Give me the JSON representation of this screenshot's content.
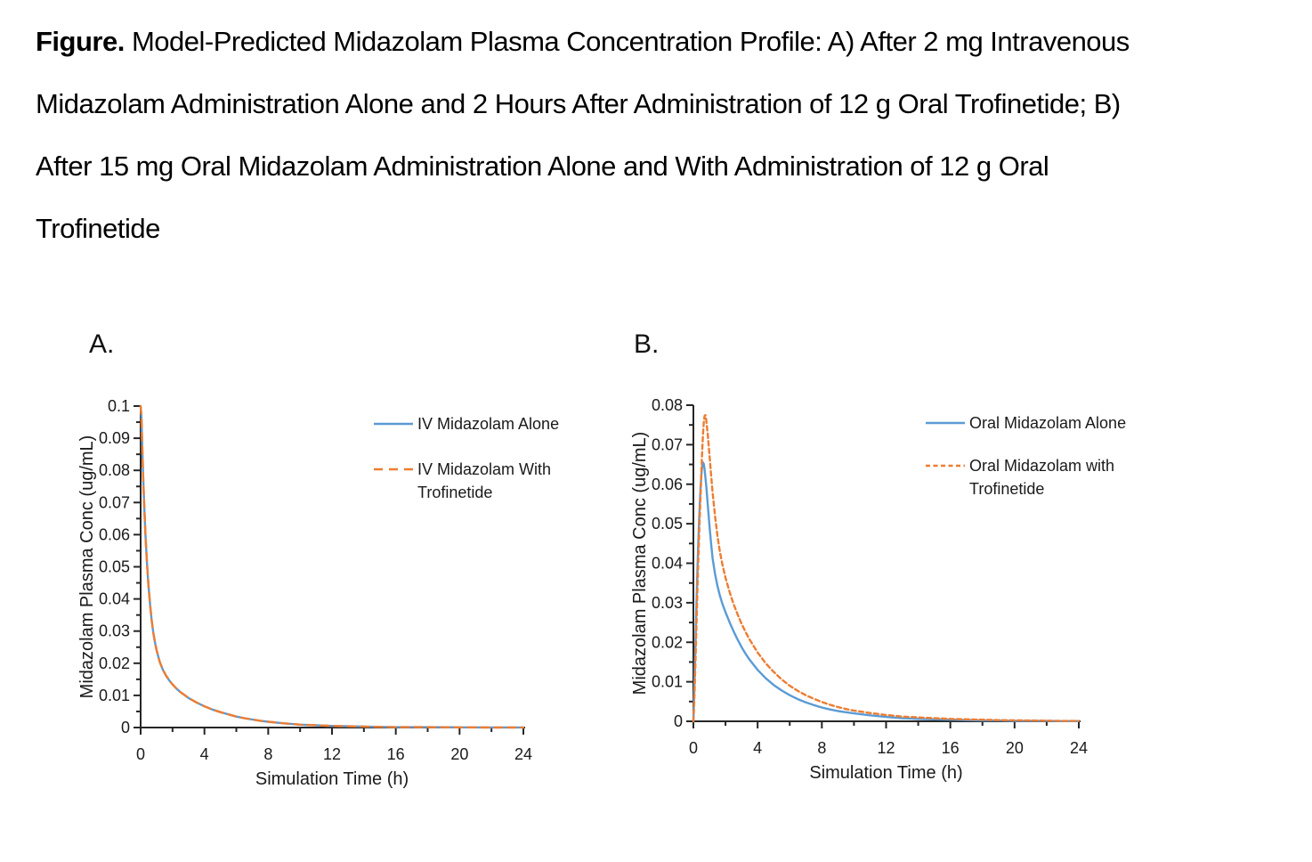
{
  "figure_caption": {
    "bold_prefix": "Figure.",
    "lines": [
      "Model-Predicted Midazolam Plasma Concentration Profile: A) After 2 mg Intravenous",
      "Midazolam Administration Alone and 2 Hours After Administration of 12 g Oral Trofinetide; B)",
      "After 15 mg Oral Midazolam Administration Alone and With Administration of 12 g Oral",
      "Trofinetide"
    ]
  },
  "colors": {
    "series_blue": "#5B9BD5",
    "series_orange": "#ED7D31",
    "axis": "#262626",
    "text": "#1A1A1A",
    "background": "#FFFFFF"
  },
  "chart_data": [
    {
      "id": "A",
      "panel_label": "A.",
      "type": "line",
      "xlabel": "Simulation Time (h)",
      "ylabel": "Midazolam Plasma Conc (ug/mL)",
      "xlim": [
        0,
        24
      ],
      "ylim": [
        0,
        0.1
      ],
      "x_major_ticks": [
        0,
        4,
        8,
        12,
        16,
        20,
        24
      ],
      "x_minor_ticks": [
        2,
        6,
        10,
        14,
        18,
        22
      ],
      "y_major_tick_step": 0.01,
      "y_minor_tick_step": 0.005,
      "grid": false,
      "legend_position": "upper-right-inside",
      "series": [
        {
          "name": "IV Midazolam Alone",
          "legend_lines": [
            "IV Midazolam Alone"
          ],
          "color_key": "series_blue",
          "line_style": "solid",
          "points": [
            [
              0,
              0.1
            ],
            [
              0.05,
              0.0966
            ],
            [
              0.1,
              0.0874
            ],
            [
              0.15,
              0.0793
            ],
            [
              0.2,
              0.0722
            ],
            [
              0.25,
              0.0659
            ],
            [
              0.3,
              0.0602
            ],
            [
              0.35,
              0.0553
            ],
            [
              0.4,
              0.0509
            ],
            [
              0.45,
              0.047
            ],
            [
              0.5,
              0.0436
            ],
            [
              0.6,
              0.0377
            ],
            [
              0.7,
              0.0331
            ],
            [
              0.8,
              0.0294
            ],
            [
              0.9,
              0.0265
            ],
            [
              1,
              0.0241
            ],
            [
              1.2,
              0.0204
            ],
            [
              1.4,
              0.0179
            ],
            [
              1.6,
              0.0161
            ],
            [
              1.8,
              0.0146
            ],
            [
              2,
              0.0134
            ],
            [
              2.25,
              0.0121
            ],
            [
              2.5,
              0.011
            ],
            [
              2.75,
              0.0101
            ],
            [
              3,
              0.0092
            ],
            [
              3.5,
              0.0078
            ],
            [
              4,
              0.0066
            ],
            [
              4.5,
              0.0056
            ],
            [
              5,
              0.0048
            ],
            [
              5.5,
              0.0041
            ],
            [
              6,
              0.0034
            ],
            [
              6.5,
              0.0029
            ],
            [
              7,
              0.0025
            ],
            [
              7.5,
              0.0021
            ],
            [
              8,
              0.0018
            ],
            [
              9,
              0.0013
            ],
            [
              10,
              0.0009
            ],
            [
              11,
              0.0007
            ],
            [
              12,
              0.0005
            ],
            [
              13,
              0.0004
            ],
            [
              14,
              0.0003
            ],
            [
              15,
              0.0002
            ],
            [
              16,
              0.0001
            ],
            [
              18,
              0.0001
            ],
            [
              20,
              5e-05
            ],
            [
              22,
              3e-05
            ],
            [
              24,
              2e-05
            ]
          ]
        },
        {
          "name": "IV Midazolam With Trofinetide",
          "legend_lines": [
            "IV Midazolam With",
            "Trofinetide"
          ],
          "color_key": "series_orange",
          "line_style": "dashed",
          "points": [
            [
              0,
              0.1
            ],
            [
              0.05,
              0.0966
            ],
            [
              0.1,
              0.0874
            ],
            [
              0.15,
              0.0793
            ],
            [
              0.2,
              0.0722
            ],
            [
              0.25,
              0.0659
            ],
            [
              0.3,
              0.0602
            ],
            [
              0.35,
              0.0553
            ],
            [
              0.4,
              0.0509
            ],
            [
              0.45,
              0.047
            ],
            [
              0.5,
              0.0436
            ],
            [
              0.6,
              0.0377
            ],
            [
              0.7,
              0.0331
            ],
            [
              0.8,
              0.0294
            ],
            [
              0.9,
              0.0265
            ],
            [
              1,
              0.0241
            ],
            [
              1.2,
              0.0204
            ],
            [
              1.4,
              0.0179
            ],
            [
              1.6,
              0.0161
            ],
            [
              1.8,
              0.0146
            ],
            [
              2,
              0.0134
            ],
            [
              2.25,
              0.0121
            ],
            [
              2.5,
              0.011
            ],
            [
              2.75,
              0.0101
            ],
            [
              3,
              0.0092
            ],
            [
              3.5,
              0.0078
            ],
            [
              4,
              0.0066
            ],
            [
              4.5,
              0.0056
            ],
            [
              5,
              0.0048
            ],
            [
              5.5,
              0.0041
            ],
            [
              6,
              0.0034
            ],
            [
              6.5,
              0.0029
            ],
            [
              7,
              0.0025
            ],
            [
              7.5,
              0.0021
            ],
            [
              8,
              0.0018
            ],
            [
              9,
              0.0013
            ],
            [
              10,
              0.0009
            ],
            [
              11,
              0.0007
            ],
            [
              12,
              0.0005
            ],
            [
              13,
              0.0004
            ],
            [
              14,
              0.0003
            ],
            [
              15,
              0.0002
            ],
            [
              16,
              0.0001
            ],
            [
              18,
              0.0001
            ],
            [
              20,
              5e-05
            ],
            [
              22,
              3e-05
            ],
            [
              24,
              2e-05
            ]
          ]
        }
      ]
    },
    {
      "id": "B",
      "panel_label": "B.",
      "type": "line",
      "xlabel": "Simulation Time (h)",
      "ylabel": "Midazolam Plasma Conc (ug/mL)",
      "xlim": [
        0,
        24
      ],
      "ylim": [
        0,
        0.08
      ],
      "x_major_ticks": [
        0,
        4,
        8,
        12,
        16,
        20,
        24
      ],
      "x_minor_ticks": [
        2,
        6,
        10,
        14,
        18,
        22
      ],
      "y_major_tick_step": 0.01,
      "y_minor_tick_step": 0.005,
      "grid": false,
      "legend_position": "upper-right-inside",
      "series": [
        {
          "name": "Oral Midazolam Alone",
          "legend_lines": [
            "Oral Midazolam Alone"
          ],
          "color_key": "series_blue",
          "line_style": "solid",
          "points": [
            [
              0,
              0
            ],
            [
              0.05,
              0.007
            ],
            [
              0.1,
              0.015
            ],
            [
              0.15,
              0.023
            ],
            [
              0.2,
              0.031
            ],
            [
              0.25,
              0.038
            ],
            [
              0.3,
              0.0445
            ],
            [
              0.35,
              0.0502
            ],
            [
              0.4,
              0.0551
            ],
            [
              0.45,
              0.0592
            ],
            [
              0.5,
              0.0625
            ],
            [
              0.55,
              0.0646
            ],
            [
              0.6,
              0.0655
            ],
            [
              0.65,
              0.0651
            ],
            [
              0.7,
              0.0638
            ],
            [
              0.8,
              0.0597
            ],
            [
              0.9,
              0.0547
            ],
            [
              1,
              0.0497
            ],
            [
              1.1,
              0.0452
            ],
            [
              1.2,
              0.0412
            ],
            [
              1.35,
              0.0372
            ],
            [
              1.5,
              0.0342
            ],
            [
              1.65,
              0.0318
            ],
            [
              1.8,
              0.0298
            ],
            [
              2,
              0.0276
            ],
            [
              2.25,
              0.0251
            ],
            [
              2.5,
              0.0228
            ],
            [
              2.75,
              0.0207
            ],
            [
              3,
              0.0188
            ],
            [
              3.25,
              0.0171
            ],
            [
              3.5,
              0.0156
            ],
            [
              4,
              0.013
            ],
            [
              4.5,
              0.0109
            ],
            [
              5,
              0.0092
            ],
            [
              5.5,
              0.0078
            ],
            [
              6,
              0.0066
            ],
            [
              6.5,
              0.0056
            ],
            [
              7,
              0.0048
            ],
            [
              7.5,
              0.0041
            ],
            [
              8,
              0.0035
            ],
            [
              8.5,
              0.003
            ],
            [
              9,
              0.0026
            ],
            [
              9.5,
              0.0023
            ],
            [
              10,
              0.002
            ],
            [
              11,
              0.0015
            ],
            [
              12,
              0.0011
            ],
            [
              13,
              0.0008
            ],
            [
              14,
              0.0006
            ],
            [
              15,
              0.0005
            ],
            [
              16,
              0.0004
            ],
            [
              17,
              0.0003
            ],
            [
              18,
              0.0002
            ],
            [
              19,
              0.0002
            ],
            [
              20,
              0.0001
            ],
            [
              21,
              0.0001
            ],
            [
              22,
              0.0001
            ],
            [
              23,
              5e-05
            ],
            [
              24,
              5e-05
            ]
          ]
        },
        {
          "name": "Oral Midazolam with Trofinetide",
          "legend_lines": [
            "Oral Midazolam with",
            "Trofinetide"
          ],
          "color_key": "series_orange",
          "line_style": "dashed",
          "points": [
            [
              0,
              0
            ],
            [
              0.05,
              0.0045
            ],
            [
              0.1,
              0.011
            ],
            [
              0.15,
              0.018
            ],
            [
              0.2,
              0.0255
            ],
            [
              0.25,
              0.033
            ],
            [
              0.3,
              0.0398
            ],
            [
              0.35,
              0.046
            ],
            [
              0.4,
              0.0518
            ],
            [
              0.45,
              0.0571
            ],
            [
              0.5,
              0.0632
            ],
            [
              0.55,
              0.0684
            ],
            [
              0.6,
              0.0727
            ],
            [
              0.65,
              0.0757
            ],
            [
              0.7,
              0.0773
            ],
            [
              0.75,
              0.0775
            ],
            [
              0.8,
              0.0763
            ],
            [
              0.9,
              0.0725
            ],
            [
              1,
              0.0676
            ],
            [
              1.1,
              0.0626
            ],
            [
              1.2,
              0.0579
            ],
            [
              1.35,
              0.0518
            ],
            [
              1.5,
              0.0468
            ],
            [
              1.65,
              0.0429
            ],
            [
              1.8,
              0.0398
            ],
            [
              2,
              0.0363
            ],
            [
              2.25,
              0.0328
            ],
            [
              2.5,
              0.0297
            ],
            [
              2.75,
              0.0271
            ],
            [
              3,
              0.0247
            ],
            [
              3.25,
              0.0226
            ],
            [
              3.5,
              0.0207
            ],
            [
              4,
              0.0174
            ],
            [
              4.5,
              0.0147
            ],
            [
              5,
              0.0125
            ],
            [
              5.5,
              0.0106
            ],
            [
              6,
              0.009
            ],
            [
              6.5,
              0.0077
            ],
            [
              7,
              0.0066
            ],
            [
              7.5,
              0.0057
            ],
            [
              8,
              0.0049
            ],
            [
              8.5,
              0.0042
            ],
            [
              9,
              0.0036
            ],
            [
              9.5,
              0.0031
            ],
            [
              10,
              0.0027
            ],
            [
              11,
              0.0021
            ],
            [
              12,
              0.0016
            ],
            [
              13,
              0.0012
            ],
            [
              14,
              0.001
            ],
            [
              15,
              0.0008
            ],
            [
              16,
              0.0006
            ],
            [
              17,
              0.0005
            ],
            [
              18,
              0.0004
            ],
            [
              19,
              0.0003
            ],
            [
              20,
              0.00025
            ],
            [
              21,
              0.0002
            ],
            [
              22,
              0.00015
            ],
            [
              23,
              0.0001
            ],
            [
              24,
              0.0001
            ]
          ]
        }
      ]
    }
  ]
}
